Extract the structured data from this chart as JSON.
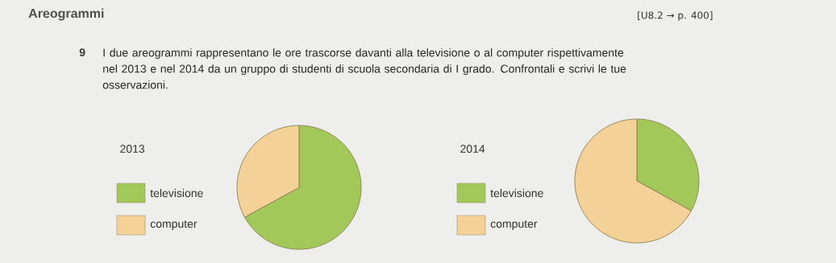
{
  "chart_data": [
    {
      "type": "pie",
      "title": "2013",
      "categories": [
        "televisione",
        "computer"
      ],
      "values": [
        67,
        33
      ],
      "colors": [
        "#a3c85a",
        "#f4d297"
      ],
      "legend": "left",
      "annotations": [
        "Areogrammi",
        "[U8.2 → p. 400]",
        "9",
        "I due areogrammi rappresentano le ore trascorse davanti alla televisione o al computer rispettivamente nel 2013 e nel 2014 da un gruppo di studenti di scuola secondaria di I grado. Confrontali e scrivi le tue osservazioni."
      ]
    },
    {
      "type": "pie",
      "title": "2014",
      "categories": [
        "televisione",
        "computer"
      ],
      "values": [
        33,
        67
      ],
      "colors": [
        "#a3c85a",
        "#f4d297"
      ],
      "legend": "left"
    }
  ]
}
